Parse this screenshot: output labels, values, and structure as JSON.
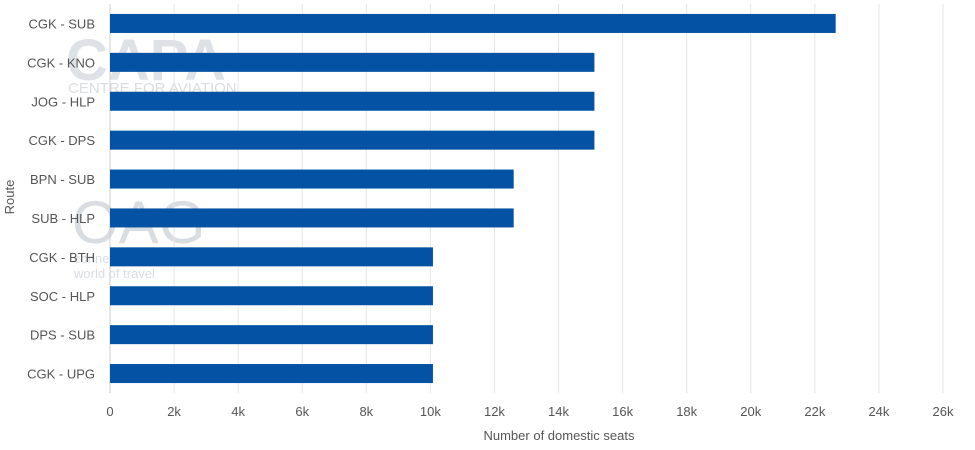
{
  "chart_data": {
    "type": "bar",
    "orientation": "horizontal",
    "categories": [
      "CGK - SUB",
      "CGK - KNO",
      "JOG - HLP",
      "CGK - DPS",
      "BPN - SUB",
      "SUB - HLP",
      "CGK - BTH",
      "SOC - HLP",
      "DPS - SUB",
      "CGK - UPG"
    ],
    "values": [
      22650,
      15120,
      15120,
      15120,
      12600,
      12600,
      10080,
      10080,
      10080,
      10080
    ],
    "title": "",
    "xlabel": "Number of domestic seats",
    "ylabel": "Route",
    "xlim": [
      0,
      26000
    ],
    "x_ticks": [
      0,
      2000,
      4000,
      6000,
      8000,
      10000,
      12000,
      14000,
      16000,
      18000,
      20000,
      22000,
      24000,
      26000
    ],
    "x_tick_labels": [
      "0",
      "2k",
      "4k",
      "6k",
      "8k",
      "10k",
      "12k",
      "14k",
      "16k",
      "18k",
      "20k",
      "22k",
      "24k",
      "26k"
    ],
    "grid": "vertical",
    "legend": "none",
    "bar_color": "#0352a3"
  },
  "watermark": {
    "logo_text": "CAPA",
    "tagline": "CENTRE FOR AVIATION",
    "logo2_text": "OAG",
    "tagline2_a": "connecting the",
    "tagline2_b": "world of travel"
  }
}
